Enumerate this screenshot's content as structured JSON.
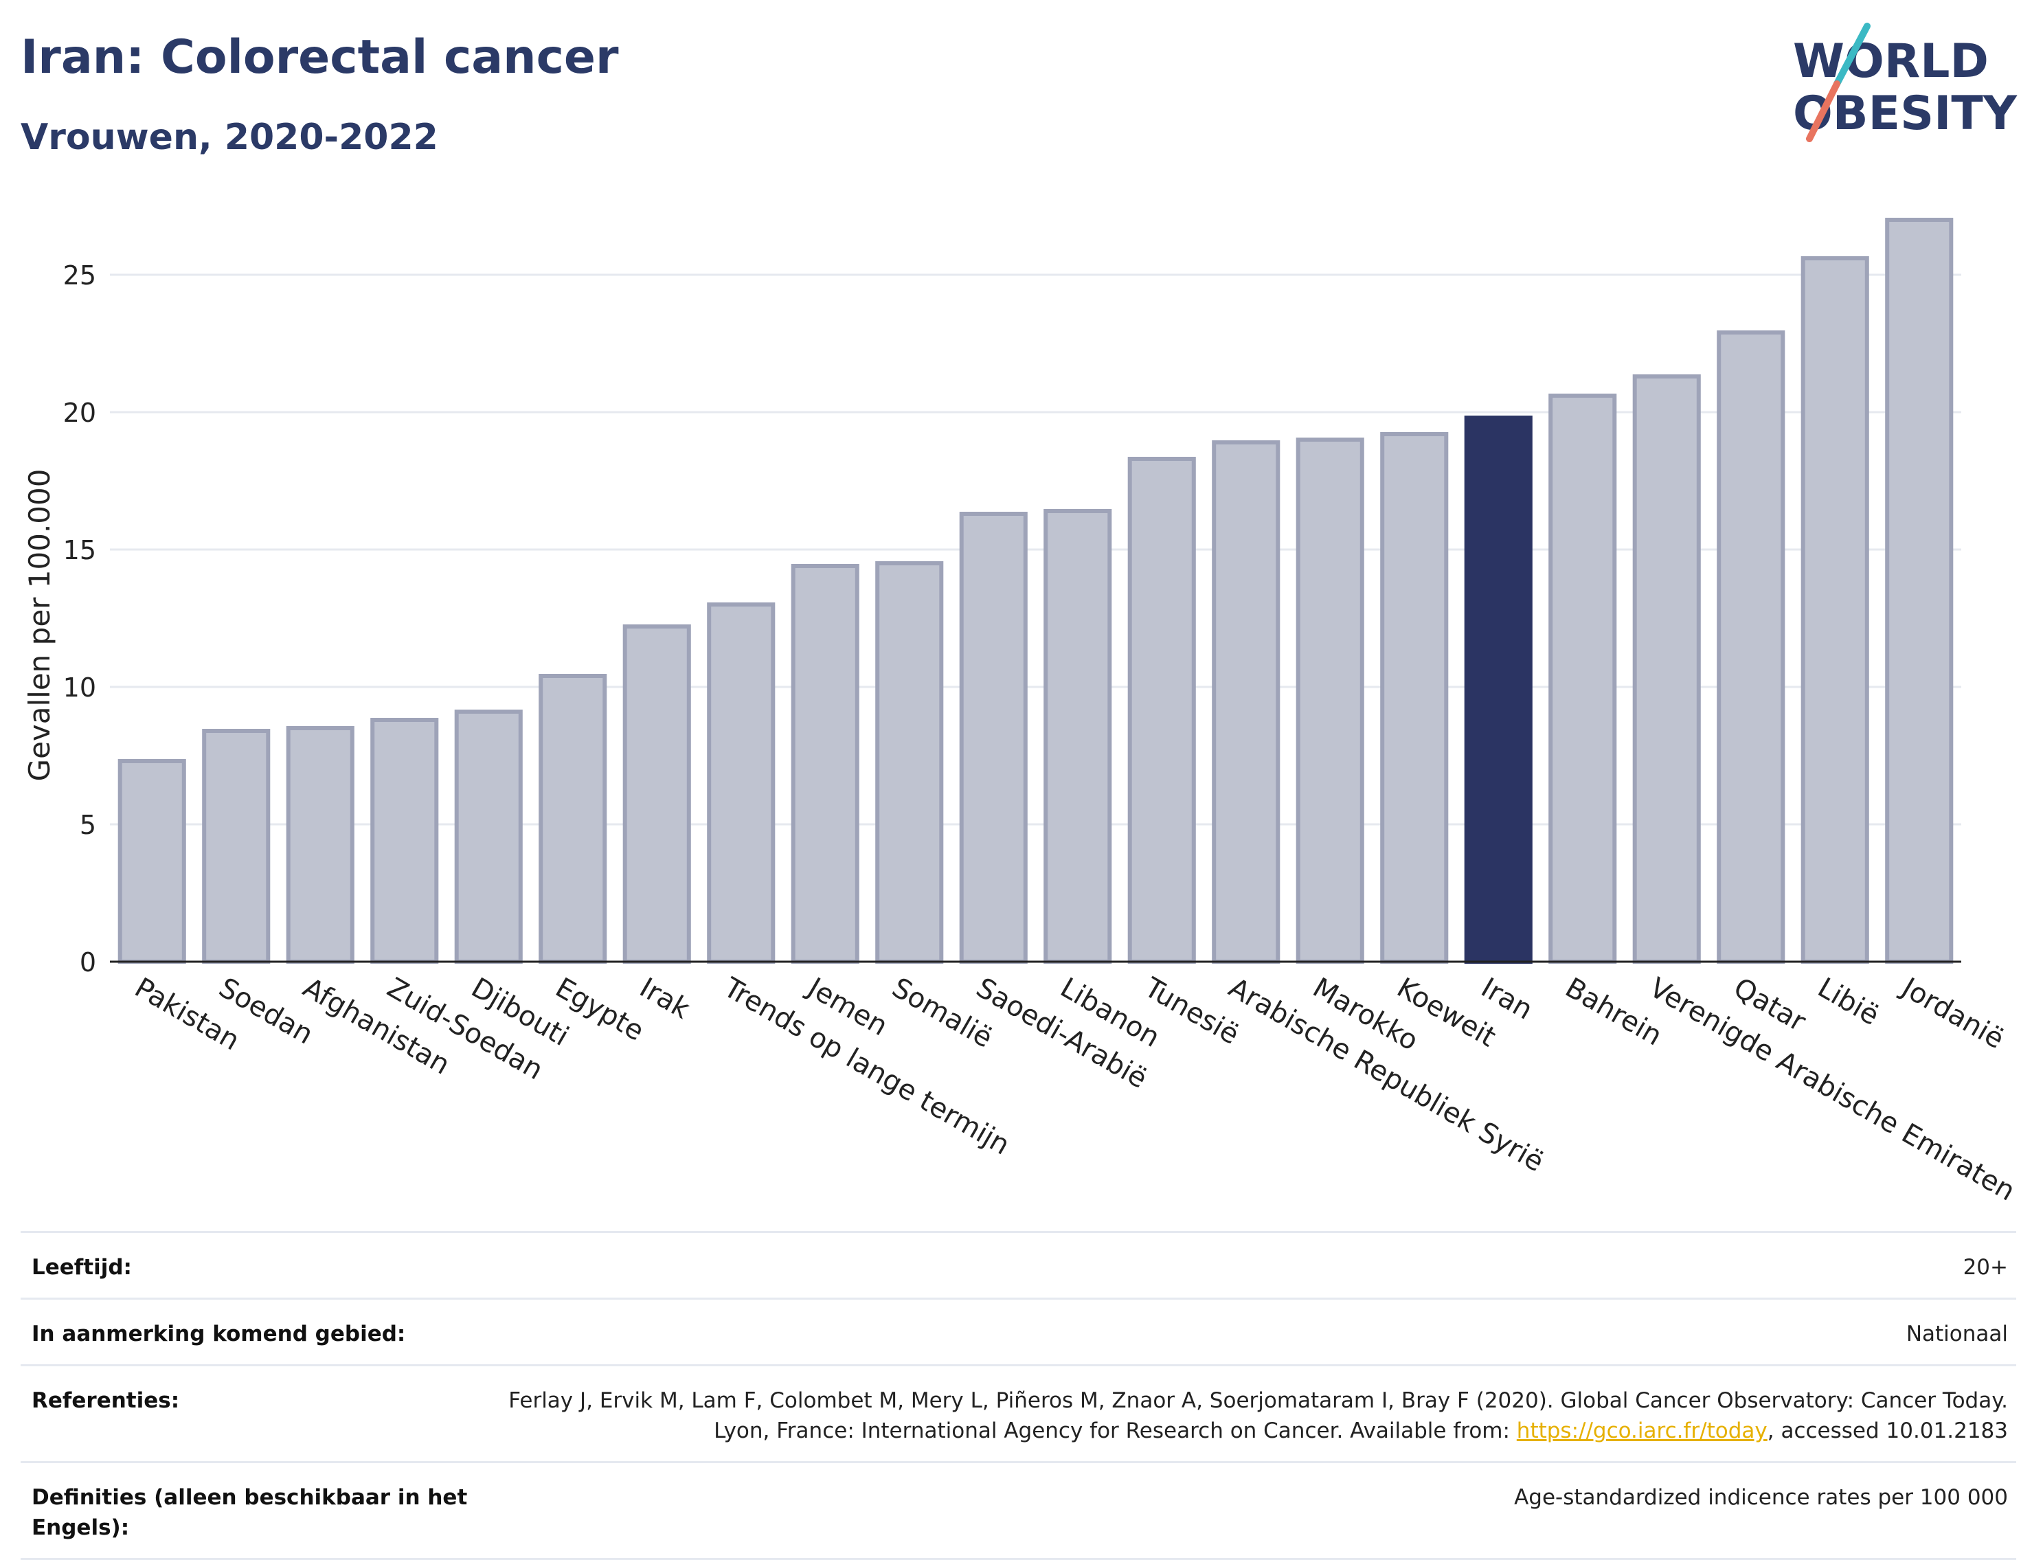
{
  "header": {
    "title": "Iran: Colorectal cancer",
    "subtitle": "Vrouwen, 2020-2022"
  },
  "logo": {
    "line1": "WORLD",
    "line2": "OBESITY"
  },
  "colors": {
    "highlight": "#2b3463",
    "bar_fill": "#bfc3d0",
    "bar_stroke": "#9ea3b8",
    "grid": "#e6e9ef"
  },
  "chart_data": {
    "type": "bar",
    "ylabel": "Gevallen per 100.000",
    "ylim": [
      0,
      27.5
    ],
    "yticks": [
      0,
      5,
      10,
      15,
      20,
      25
    ],
    "highlight": "Iran",
    "categories": [
      "Pakistan",
      "Soedan",
      "Afghanistan",
      "Zuid-Soedan",
      "Djibouti",
      "Egypte",
      "Irak",
      "Trends op lange termijn",
      "Jemen",
      "Somalië",
      "Saoedi-Arabië",
      "Libanon",
      "Tunesië",
      "Arabische Republiek Syrië",
      "Marokko",
      "Koeweit",
      "Iran",
      "Bahrein",
      "Verenigde Arabische Emiraten",
      "Qatar",
      "Libië",
      "Jordanië"
    ],
    "values": [
      7.3,
      8.4,
      8.5,
      8.8,
      9.1,
      10.4,
      12.2,
      13.0,
      14.4,
      14.5,
      16.3,
      16.4,
      18.3,
      18.9,
      19.0,
      19.2,
      19.8,
      20.6,
      21.3,
      22.9,
      25.6,
      27.0
    ]
  },
  "meta": {
    "age_label": "Leeftijd:",
    "age_value": "20+",
    "area_label": "In aanmerking komend gebied:",
    "area_value": "Nationaal",
    "ref_label": "Referenties:",
    "ref_text_1": "Ferlay J, Ervik M, Lam F, Colombet M, Mery L, Piñeros M, Znaor A, Soerjomataram I, Bray F (2020). Global Cancer Observatory: Cancer Today. Lyon, France: International Agency for Research on Cancer. Available from: ",
    "ref_link": "https://gco.iarc.fr/today",
    "ref_text_2": ", accessed 10.01.2183",
    "def_label": "Definities (alleen beschikbaar in het Engels):",
    "def_value": "Age-standardized indicence rates per 100 000"
  }
}
